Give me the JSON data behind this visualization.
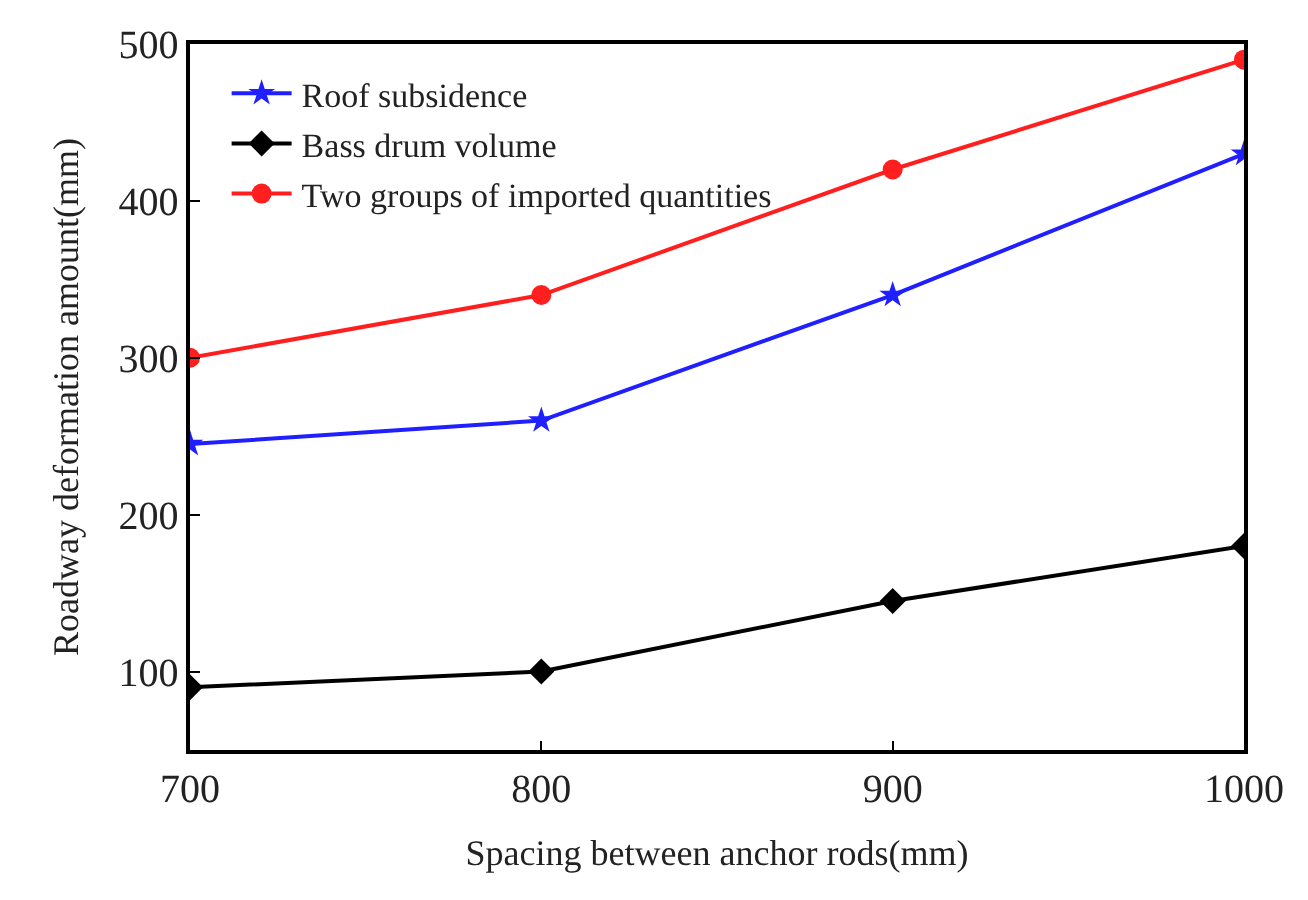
{
  "chart_data": {
    "type": "line",
    "xlabel": "Spacing between anchor rods(mm)",
    "ylabel": "Roadway deformation amount(mm)",
    "x": [
      700,
      800,
      900,
      1000
    ],
    "series": [
      {
        "name": "Roof subsidence",
        "color": "#1f1fff",
        "values": [
          245,
          260,
          340,
          430
        ],
        "marker": "star"
      },
      {
        "name": "Bass drum volume",
        "color": "#000000",
        "values": [
          90,
          100,
          145,
          180
        ],
        "marker": "diamond"
      },
      {
        "name": "Two groups of imported quantities",
        "color": "#ff1f1f",
        "values": [
          300,
          340,
          420,
          490
        ],
        "marker": "circle"
      }
    ],
    "xlim": [
      700,
      1000
    ],
    "xticks": [
      700,
      800,
      900,
      1000
    ],
    "ylim": [
      50,
      500
    ],
    "yticks": [
      100,
      200,
      300,
      400,
      500
    ],
    "legend": "top left",
    "line_style": "solid"
  }
}
